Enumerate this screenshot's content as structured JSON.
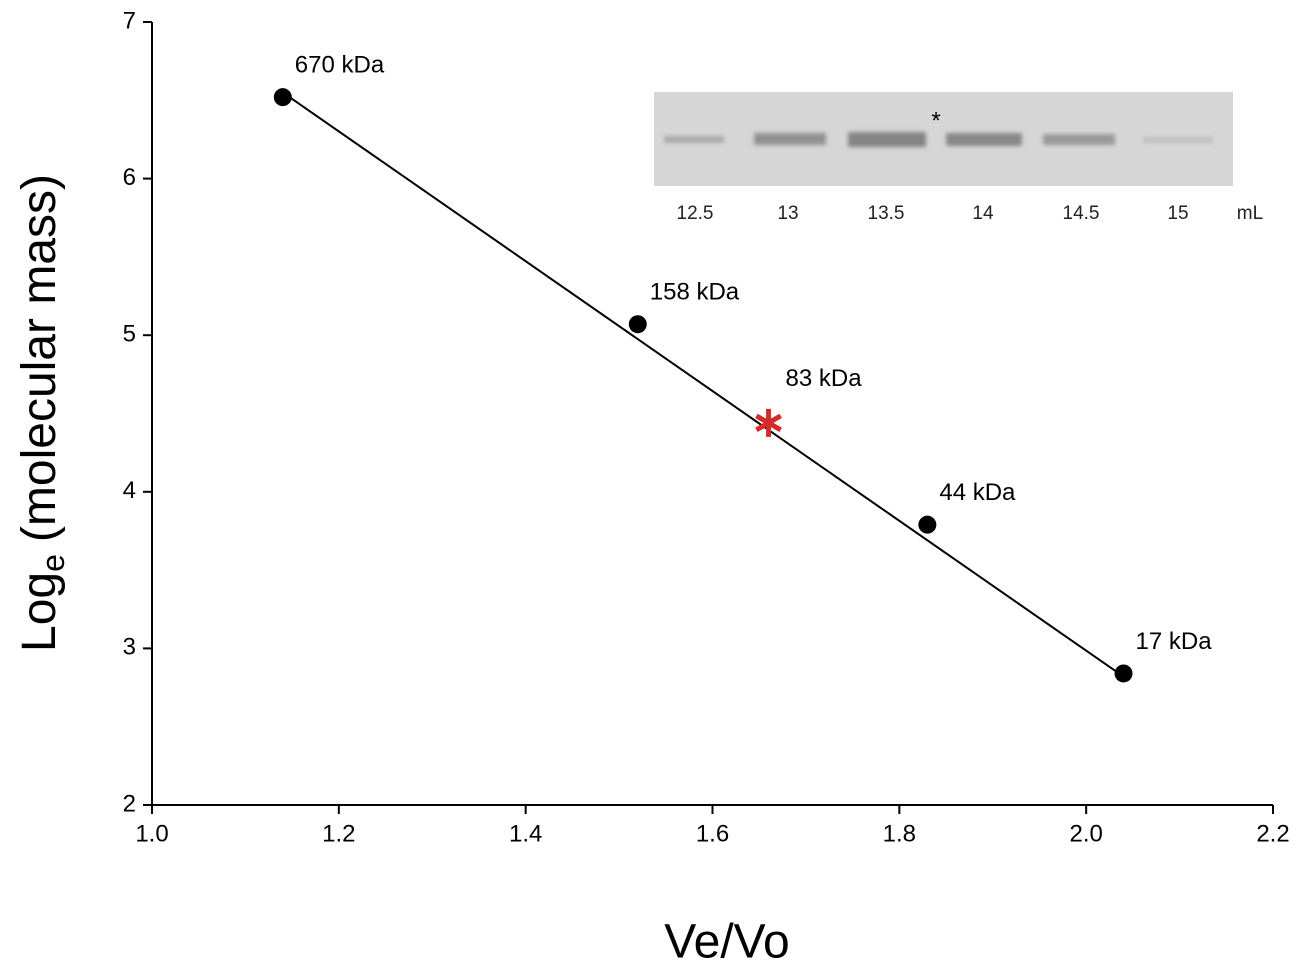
{
  "chart_data": {
    "type": "scatter",
    "xlabel": "Ve/Vo",
    "ylabel": [
      "Log",
      "e",
      "(molecular mass)"
    ],
    "xlim": [
      1.0,
      2.2
    ],
    "xticks": [
      {
        "value": 1.0,
        "label": "1.0"
      },
      1.2,
      1.4,
      1.6,
      1.8,
      {
        "value": 2.0,
        "label": "2.0"
      },
      2.2
    ],
    "ylim": [
      2,
      7
    ],
    "yticks": [
      2,
      3,
      4,
      5,
      6,
      7
    ],
    "series": [
      {
        "color": "#000000",
        "x": [
          1.14,
          1.52,
          1.83,
          2.04
        ],
        "values": [
          6.52,
          5.07,
          3.79,
          2.84
        ],
        "labels": [
          "670 kDa",
          "158 kDa",
          "44 kDa",
          "17 kDa"
        ]
      }
    ],
    "fit": {
      "color": "#000000",
      "x": [
        1.14,
        2.04
      ],
      "values": [
        6.55,
        2.82
      ]
    },
    "highlight": {
      "x": 1.66,
      "value": 4.44,
      "label": "83 kDa",
      "color": "#d42a2a"
    },
    "inset": {
      "lanes": [
        "12.5",
        "13",
        "13.5",
        "14",
        "14.5",
        "15"
      ],
      "unit": "mL",
      "marker": "*"
    }
  }
}
